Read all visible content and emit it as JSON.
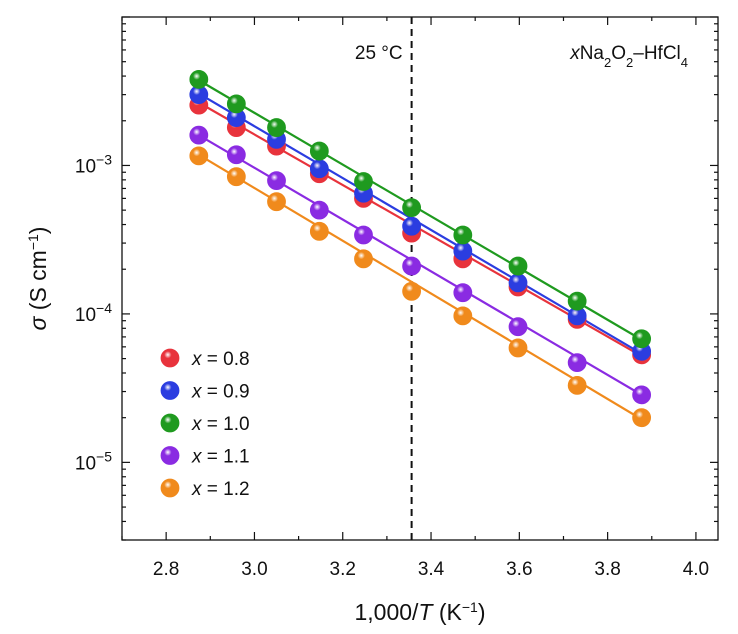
{
  "chart_data": {
    "type": "scatter",
    "title": "",
    "xlabel": {
      "prefix": "1,000/",
      "var": "T",
      "unit_open": " (K",
      "unit_sup": "−1",
      "unit_close": ")"
    },
    "ylabel": {
      "var": "σ",
      "unit_open": " (S cm",
      "unit_sup": "−1",
      "unit_close": ")"
    },
    "xlim": [
      2.7,
      4.05
    ],
    "ylim": [
      3e-06,
      0.01
    ],
    "yscale": "log",
    "xticks": [
      "2.8",
      "3.0",
      "3.2",
      "3.4",
      "3.6",
      "3.8",
      "4.0"
    ],
    "yticks": [
      {
        "value": 0.001,
        "base": "10",
        "exp": "−3"
      },
      {
        "value": 0.0001,
        "base": "10",
        "exp": "−4"
      },
      {
        "value": 1e-05,
        "base": "10",
        "exp": "−5"
      }
    ],
    "reference_line": {
      "x": 3.356,
      "label": "25 °C"
    },
    "annotation": {
      "parts": [
        "x",
        "Na",
        "2",
        "O",
        "2",
        "–HfCl",
        "4"
      ]
    },
    "legend_position": "bottom-left",
    "series": [
      {
        "name": "x = 0.8",
        "legend_var": "x",
        "legend_rest": " = 0.8",
        "color": "#e8333c",
        "x": [
          2.874,
          2.959,
          3.05,
          3.147,
          3.247,
          3.356,
          3.472,
          3.597,
          3.731,
          3.877
        ],
        "y": [
          0.00255,
          0.0018,
          0.00135,
          0.00088,
          0.0006,
          0.00035,
          0.000235,
          0.000152,
          9.2e-05,
          5.3e-05
        ],
        "fit": [
          0.00265,
          5.2e-05
        ]
      },
      {
        "name": "x = 0.9",
        "legend_var": "x",
        "legend_rest": " = 0.9",
        "color": "#2b3de0",
        "x": [
          2.874,
          2.959,
          3.05,
          3.147,
          3.247,
          3.356,
          3.472,
          3.597,
          3.731,
          3.877
        ],
        "y": [
          0.003,
          0.0021,
          0.0015,
          0.00095,
          0.00065,
          0.00039,
          0.000265,
          0.000162,
          9.7e-05,
          5.6e-05
        ],
        "fit": [
          0.00305,
          5.4e-05
        ]
      },
      {
        "name": "x = 1.0",
        "legend_var": "x",
        "legend_rest": " = 1.0",
        "color": "#1f9a1f",
        "x": [
          2.874,
          2.959,
          3.05,
          3.147,
          3.247,
          3.356,
          3.472,
          3.597,
          3.731,
          3.877
        ],
        "y": [
          0.0038,
          0.0026,
          0.0018,
          0.00125,
          0.00078,
          0.00052,
          0.00034,
          0.00021,
          0.000122,
          6.8e-05
        ],
        "fit": [
          0.00375,
          6.7e-05
        ]
      },
      {
        "name": "x = 1.1",
        "legend_var": "x",
        "legend_rest": " = 1.1",
        "color": "#8a2be2",
        "x": [
          2.874,
          2.959,
          3.05,
          3.147,
          3.247,
          3.356,
          3.472,
          3.597,
          3.731,
          3.877
        ],
        "y": [
          0.0016,
          0.00118,
          0.00079,
          0.0005,
          0.00034,
          0.00021,
          0.000139,
          8.2e-05,
          4.7e-05,
          2.85e-05
        ],
        "fit": [
          0.0016,
          2.85e-05
        ]
      },
      {
        "name": "x = 1.2",
        "legend_var": "x",
        "legend_rest": " = 1.2",
        "color": "#f08a1c",
        "x": [
          2.874,
          2.959,
          3.05,
          3.147,
          3.247,
          3.356,
          3.472,
          3.597,
          3.731,
          3.877
        ],
        "y": [
          0.00116,
          0.00084,
          0.00057,
          0.00036,
          0.000235,
          0.000142,
          9.7e-05,
          5.9e-05,
          3.3e-05,
          2e-05
        ],
        "fit": [
          0.00118,
          1.95e-05
        ]
      }
    ]
  }
}
